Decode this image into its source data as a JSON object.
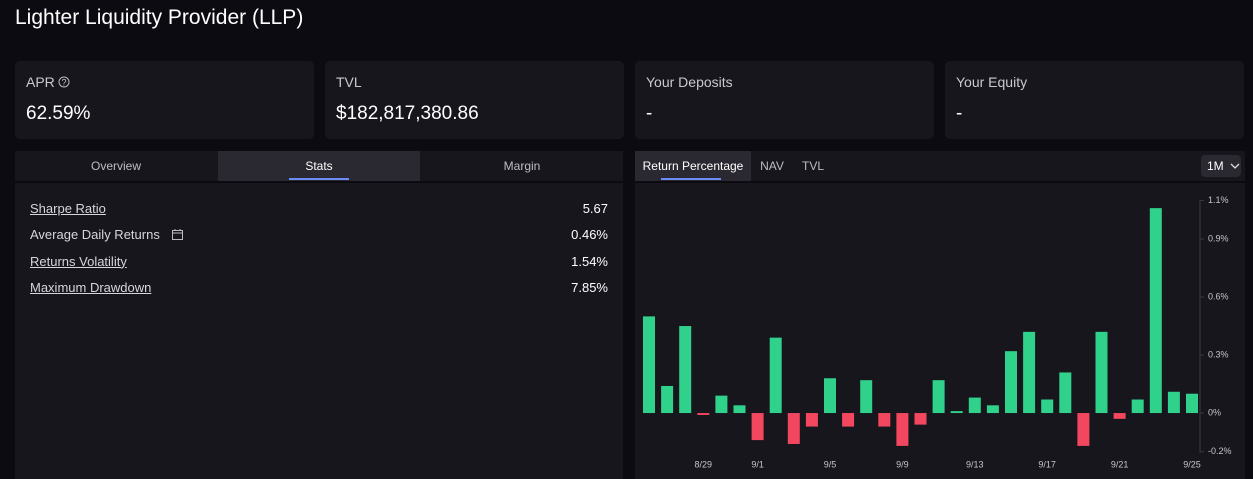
{
  "header": {
    "title": "Lighter Liquidity Provider (LLP)"
  },
  "cards": [
    {
      "label": "APR",
      "value": "62.59%"
    },
    {
      "label": "TVL",
      "value": "$182,817,380.86"
    },
    {
      "label": "Your Deposits",
      "value": "-"
    },
    {
      "label": "Your Equity",
      "value": "-"
    }
  ],
  "tabs": [
    "Overview",
    "Stats",
    "Margin"
  ],
  "stats": [
    {
      "label": "Sharpe Ratio",
      "value": "5.67"
    },
    {
      "label": "Average Daily Returns",
      "value": "0.46%"
    },
    {
      "label": "Returns Volatility",
      "value": "1.54%"
    },
    {
      "label": "Maximum Drawdown",
      "value": "7.85%"
    }
  ],
  "chart_tabs": [
    "Return Percentage",
    "NAV",
    "TVL"
  ],
  "range": "1M",
  "chart_data": {
    "type": "bar",
    "categories": [
      null,
      null,
      null,
      "8/29",
      null,
      null,
      "9/1",
      null,
      null,
      null,
      "9/5",
      null,
      null,
      null,
      "9/9",
      null,
      null,
      null,
      "9/13",
      null,
      null,
      null,
      "9/17",
      null,
      null,
      null,
      "9/21",
      null,
      null,
      null,
      "9/25"
    ],
    "values": [
      0.5,
      0.14,
      0.45,
      -0.01,
      0.09,
      0.04,
      -0.14,
      0.39,
      -0.16,
      -0.07,
      0.18,
      -0.07,
      0.17,
      -0.07,
      -0.17,
      -0.06,
      0.17,
      0.01,
      0.08,
      0.04,
      0.32,
      0.42,
      0.07,
      0.21,
      -0.17,
      0.42,
      -0.03,
      0.07,
      1.06,
      0.11,
      0.1
    ],
    "color": "#2fd18b",
    "negative_color": "#f2475f",
    "ylim": [
      -0.2,
      1.1
    ],
    "yticks": [
      {
        "value": -0.2,
        "label": "-0.2%"
      },
      {
        "value": 0,
        "label": "0%"
      },
      {
        "value": 0.3,
        "label": "0.3%"
      },
      {
        "value": 0.6,
        "label": "0.6%"
      },
      {
        "value": 0.9,
        "label": "0.9%"
      },
      {
        "value": 1.1,
        "label": "1.1%"
      }
    ]
  }
}
